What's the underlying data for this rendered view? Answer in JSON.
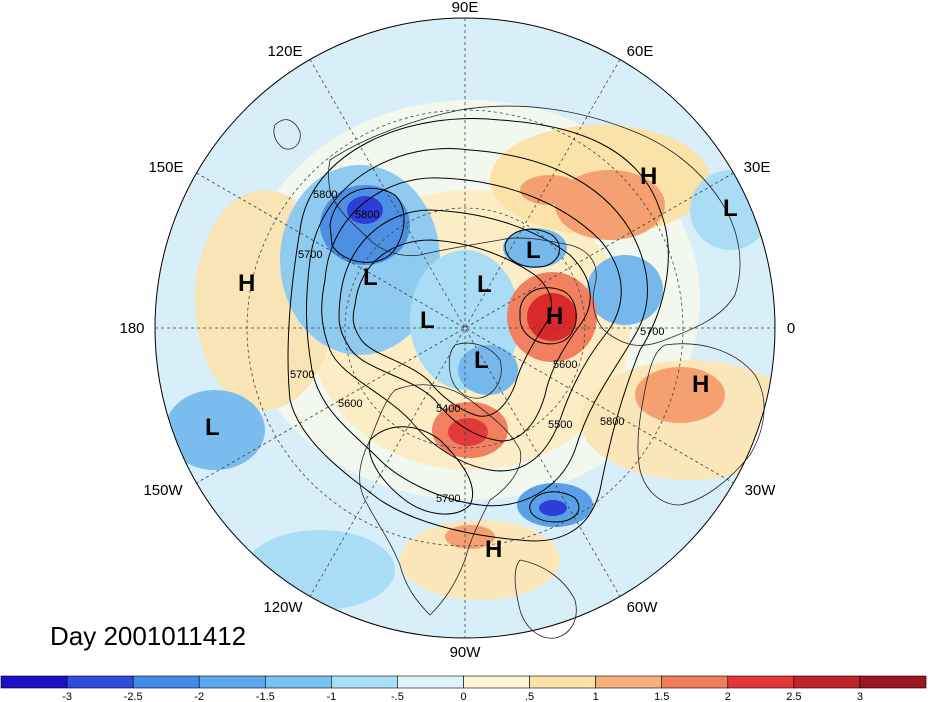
{
  "map": {
    "projection": "polar-stereographic-north",
    "day_label": "Day 2001011412",
    "longitude_labels": [
      "90E",
      "60E",
      "30E",
      "0",
      "30W",
      "60W",
      "90W",
      "120W",
      "150W",
      "180",
      "150E",
      "120E"
    ],
    "contour_labels": [
      "5800",
      "5700",
      "5700",
      "5600",
      "5400",
      "5500",
      "5600",
      "5700",
      "5800",
      "5700",
      "5800"
    ],
    "markers": [
      {
        "type": "H"
      },
      {
        "type": "L"
      },
      {
        "type": "L"
      },
      {
        "type": "H"
      },
      {
        "type": "L"
      },
      {
        "type": "L"
      },
      {
        "type": "H"
      },
      {
        "type": "L"
      },
      {
        "type": "L"
      },
      {
        "type": "H"
      },
      {
        "type": "L"
      },
      {
        "type": "H"
      }
    ],
    "anomaly_colors": {
      "strong_negative": "#2b3fd6",
      "negative": "#5aa6e8",
      "weak_negative": "#b8e6f5",
      "weak_positive": "#fbe9bd",
      "positive": "#f6a879",
      "strong_positive": "#d8292b"
    },
    "colorbar": {
      "ticks": [
        "-3",
        "-2.5",
        "-2",
        "-1.5",
        "-1",
        "-.5",
        "0",
        ".5",
        "1",
        "1.5",
        "2",
        "2.5",
        "3"
      ],
      "colors": [
        "#1e10c8",
        "#2f4ee0",
        "#3f8ce8",
        "#5ba8ee",
        "#77c3f2",
        "#a7e0f6",
        "#dff5fb",
        "#fdf6d6",
        "#fbe2a8",
        "#f7b07c",
        "#f07e5c",
        "#e4373a",
        "#c1232b",
        "#9a1623"
      ]
    }
  }
}
